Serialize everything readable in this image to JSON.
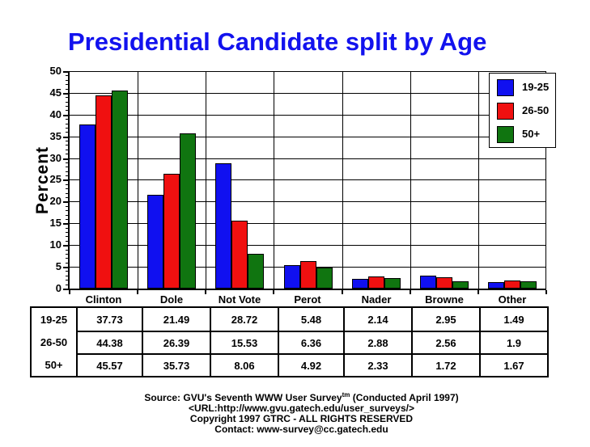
{
  "title": "Presidential Candidate split by Age",
  "colors": {
    "background": "#ffffff",
    "title": "#1212ee",
    "axis": "#000000",
    "blue_series": "#1010f0",
    "red_series": "#f01010",
    "green_series": "#107510"
  },
  "chart_data": {
    "type": "bar",
    "title": "Presidential Candidate split by Age",
    "categories": [
      "Clinton",
      "Dole",
      "Not Vote",
      "Perot",
      "Nader",
      "Browne",
      "Other"
    ],
    "series": [
      {
        "name": "19-25",
        "color": "#1010f0",
        "values": [
          37.73,
          21.49,
          28.72,
          5.48,
          2.14,
          2.95,
          1.49
        ]
      },
      {
        "name": "26-50",
        "color": "#f01010",
        "values": [
          44.38,
          26.39,
          15.53,
          6.36,
          2.88,
          2.56,
          1.9
        ]
      },
      {
        "name": "50+",
        "color": "#107510",
        "values": [
          45.57,
          35.73,
          8.06,
          4.92,
          2.33,
          1.72,
          1.67
        ]
      }
    ],
    "xlabel": "",
    "ylabel": "Percent",
    "ylim": [
      0,
      50
    ],
    "ytick_step": 5,
    "minor_tick_step": 1,
    "grid": true,
    "legend_position": "top-right"
  },
  "table": {
    "row_headers": [
      "19-25",
      "26-50",
      "50+"
    ],
    "columns": [
      "Clinton",
      "Dole",
      "Not Vote",
      "Perot",
      "Nader",
      "Browne",
      "Other"
    ],
    "rows": [
      [
        "37.73",
        "21.49",
        "28.72",
        "5.48",
        "2.14",
        "2.95",
        "1.49"
      ],
      [
        "44.38",
        "26.39",
        "15.53",
        "6.36",
        "2.88",
        "2.56",
        "1.9"
      ],
      [
        "45.57",
        "35.73",
        "8.06",
        "4.92",
        "2.33",
        "1.72",
        "1.67"
      ]
    ]
  },
  "footer": {
    "source_prefix": "Source: GVU's Seventh WWW User Survey",
    "source_sup": "tm",
    "source_suffix": " (Conducted April 1997)",
    "url_line": "<URL:http://www.gvu.gatech.edu/user_surveys/>",
    "copyright_line": "Copyright 1997 GTRC - ALL RIGHTS RESERVED",
    "contact_line": "Contact: www-survey@cc.gatech.edu"
  }
}
